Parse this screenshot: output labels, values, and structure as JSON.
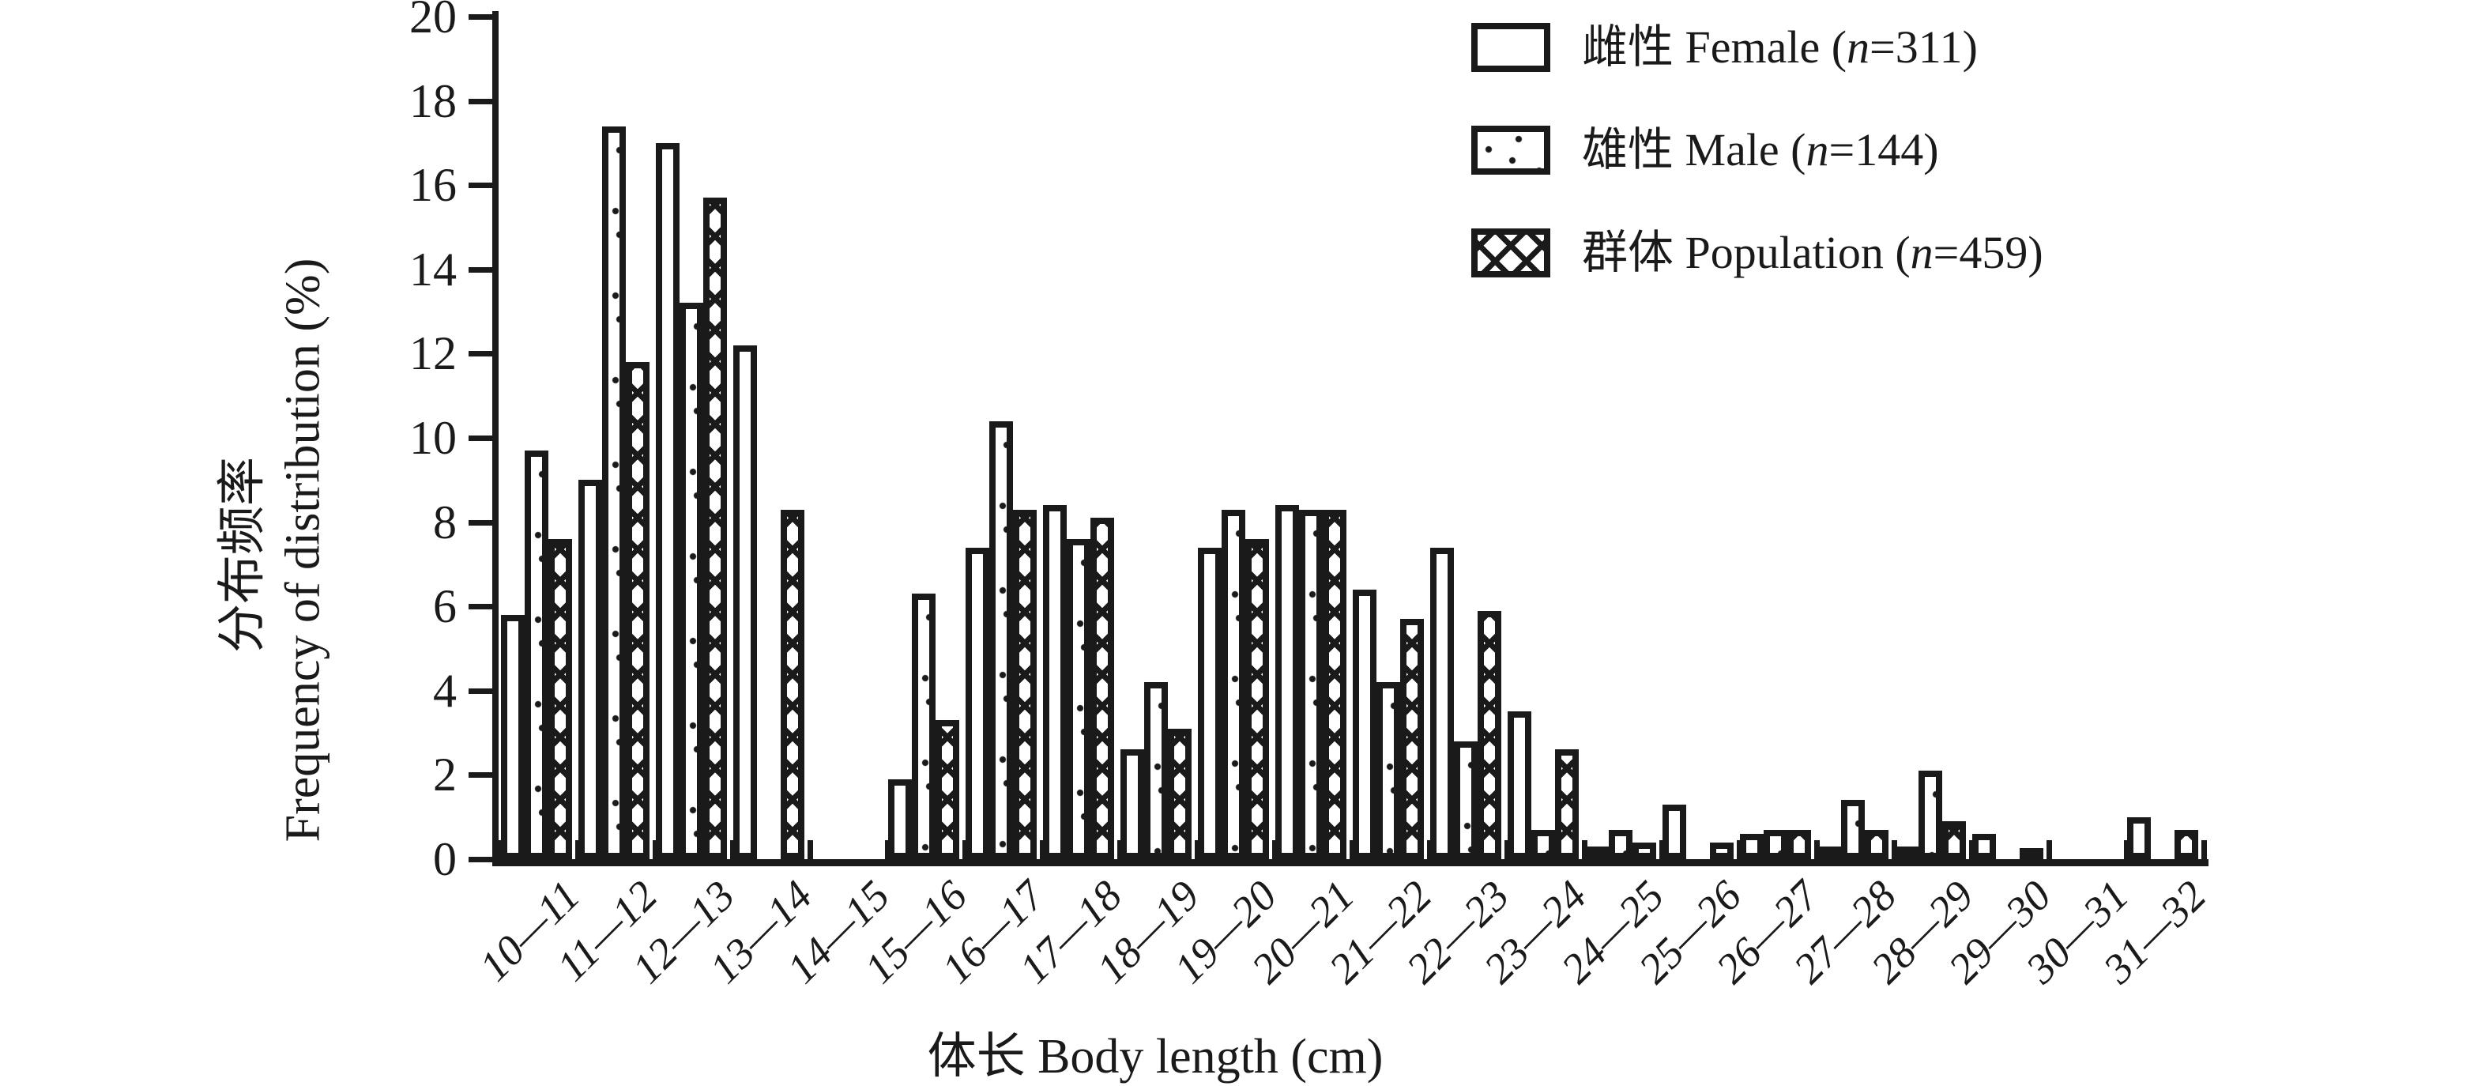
{
  "figure": {
    "background": "#ffffff",
    "ink_color": "#1a1a1a"
  },
  "chart_data": {
    "type": "bar",
    "title": "",
    "xlabel": "体长 Body length (cm)",
    "ylabel_zh": "分布频率",
    "ylabel_en": "Frequency of distribution (%)",
    "ylim": [
      0,
      20
    ],
    "y_ticks": [
      0,
      2,
      4,
      6,
      8,
      10,
      12,
      14,
      16,
      18,
      20
    ],
    "grid": false,
    "legend_position": "top-right",
    "categories": [
      "10—11",
      "11—12",
      "12—13",
      "13—14",
      "14—15",
      "15—16",
      "16—17",
      "17—18",
      "18—19",
      "19—20",
      "20—21",
      "21—22",
      "22—23",
      "23—24",
      "24—25",
      "25—26",
      "26—27",
      "27—28",
      "28—29",
      "29—30",
      "30—31",
      "31—32"
    ],
    "series": [
      {
        "label_zh": "雌性",
        "label_en": "Female",
        "n": 311,
        "pattern": "plain",
        "values": [
          5.8,
          9.0,
          17.0,
          12.2,
          0,
          1.9,
          7.4,
          8.4,
          2.6,
          7.4,
          8.4,
          6.4,
          7.4,
          3.5,
          0.3,
          1.3,
          0.6,
          0.3,
          0.3,
          0.6,
          0,
          1.0
        ]
      },
      {
        "label_zh": "雄性",
        "label_en": "Male",
        "n": 144,
        "pattern": "dots",
        "values": [
          9.7,
          17.4,
          13.2,
          0,
          0,
          6.3,
          10.4,
          7.6,
          4.2,
          8.3,
          8.3,
          4.2,
          2.8,
          0.7,
          0.7,
          0,
          0.7,
          1.4,
          2.1,
          0,
          0,
          0
        ]
      },
      {
        "label_zh": "群体",
        "label_en": "Population",
        "n": 459,
        "pattern": "crosshatch",
        "values": [
          7.6,
          11.8,
          15.7,
          8.3,
          0,
          3.3,
          8.3,
          8.1,
          3.1,
          7.6,
          8.3,
          5.7,
          5.9,
          2.6,
          0.4,
          0.4,
          0.7,
          0.7,
          0.9,
          0.2,
          0,
          0.7
        ]
      }
    ]
  }
}
